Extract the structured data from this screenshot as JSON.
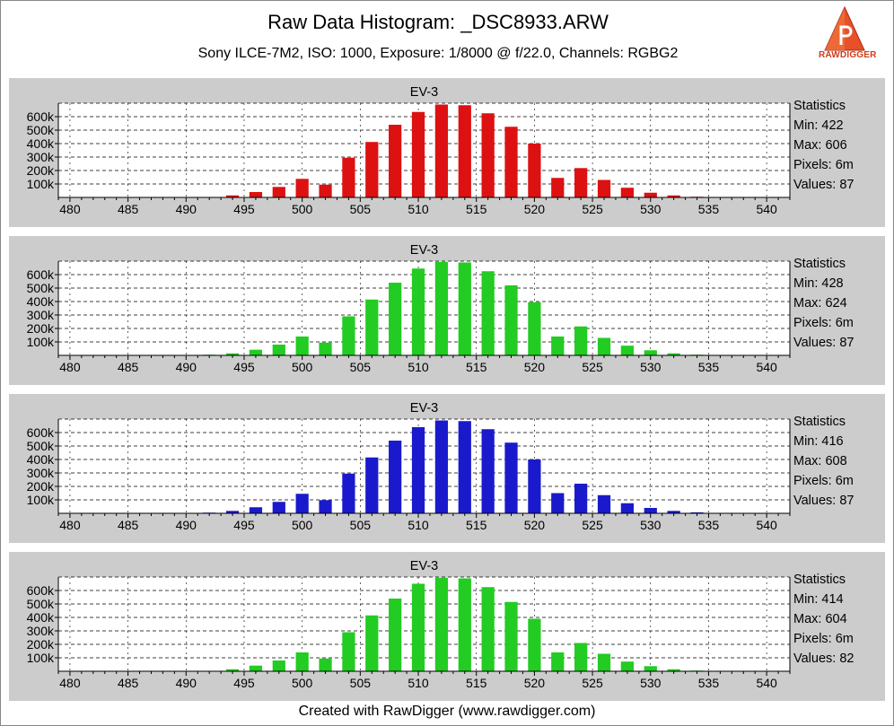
{
  "header": {
    "title": "Raw Data Histogram: _DSC8933.ARW",
    "subtitle": "Sony ILCE-7M2, ISO: 1000, Exposure: 1/8000 @ f/22.0, Channels: RGBG2"
  },
  "logo": {
    "text": "RAWDIGGER"
  },
  "footer": {
    "text": "Created with RawDigger (www.rawdigger.com)"
  },
  "colors": {
    "red": "#dd1111",
    "green": "#22cc22",
    "blue": "#1a1acc",
    "panel": "#cccccc"
  },
  "chart_data": [
    {
      "type": "bar",
      "title": "EV-3",
      "channel": "R",
      "xlim": [
        479,
        542
      ],
      "ylim": [
        0,
        700000
      ],
      "xticks": [
        480,
        485,
        490,
        495,
        500,
        505,
        510,
        515,
        520,
        525,
        530,
        535,
        540
      ],
      "xtick_labels": [
        "480",
        "485",
        "490",
        "495",
        "500",
        "505",
        "510",
        "515",
        "520",
        "525",
        "530",
        "535",
        "540"
      ],
      "yticks": [
        100000,
        200000,
        300000,
        400000,
        500000,
        600000
      ],
      "ytick_labels": [
        "100k",
        "200k",
        "300k",
        "400k",
        "500k",
        "600k"
      ],
      "grid": true,
      "x": [
        492,
        494,
        496,
        498,
        500,
        502,
        504,
        506,
        508,
        510,
        512,
        514,
        516,
        518,
        520,
        522,
        524,
        526,
        528,
        530,
        532,
        534,
        536
      ],
      "values": [
        2000,
        15000,
        40000,
        78000,
        138000,
        95000,
        295000,
        412000,
        540000,
        635000,
        690000,
        685000,
        625000,
        525000,
        400000,
        145000,
        218000,
        130000,
        72000,
        35000,
        15000,
        5000,
        3000
      ],
      "statistics": {
        "heading": "Statistics",
        "min": "Min: 422",
        "max": "Max: 606",
        "pixels": "Pixels: 6m",
        "values": "Values: 87"
      }
    },
    {
      "type": "bar",
      "title": "EV-3",
      "channel": "G",
      "xlim": [
        479,
        542
      ],
      "ylim": [
        0,
        700000
      ],
      "xticks": [
        480,
        485,
        490,
        495,
        500,
        505,
        510,
        515,
        520,
        525,
        530,
        535,
        540
      ],
      "xtick_labels": [
        "480",
        "485",
        "490",
        "495",
        "500",
        "505",
        "510",
        "515",
        "520",
        "525",
        "530",
        "535",
        "540"
      ],
      "yticks": [
        100000,
        200000,
        300000,
        400000,
        500000,
        600000
      ],
      "ytick_labels": [
        "100k",
        "200k",
        "300k",
        "400k",
        "500k",
        "600k"
      ],
      "grid": true,
      "x": [
        492,
        494,
        496,
        498,
        500,
        502,
        504,
        506,
        508,
        510,
        512,
        514,
        516,
        518,
        520,
        522,
        524,
        526,
        528,
        530,
        532,
        534,
        536
      ],
      "values": [
        5000,
        15000,
        42000,
        80000,
        140000,
        95000,
        290000,
        415000,
        540000,
        645000,
        695000,
        690000,
        625000,
        520000,
        395000,
        140000,
        215000,
        130000,
        72000,
        38000,
        15000,
        5000,
        2000
      ],
      "statistics": {
        "heading": "Statistics",
        "min": "Min: 428",
        "max": "Max: 624",
        "pixels": "Pixels: 6m",
        "values": "Values: 87"
      }
    },
    {
      "type": "bar",
      "title": "EV-3",
      "channel": "B",
      "xlim": [
        479,
        542
      ],
      "ylim": [
        0,
        700000
      ],
      "xticks": [
        480,
        485,
        490,
        495,
        500,
        505,
        510,
        515,
        520,
        525,
        530,
        535,
        540
      ],
      "xtick_labels": [
        "480",
        "485",
        "490",
        "495",
        "500",
        "505",
        "510",
        "515",
        "520",
        "525",
        "530",
        "535",
        "540"
      ],
      "yticks": [
        100000,
        200000,
        300000,
        400000,
        500000,
        600000
      ],
      "ytick_labels": [
        "100k",
        "200k",
        "300k",
        "400k",
        "500k",
        "600k"
      ],
      "grid": true,
      "x": [
        492,
        494,
        496,
        498,
        500,
        502,
        504,
        506,
        508,
        510,
        512,
        514,
        516,
        518,
        520,
        522,
        524,
        526,
        528,
        530,
        532,
        534,
        536
      ],
      "values": [
        5000,
        18000,
        45000,
        85000,
        145000,
        98000,
        295000,
        415000,
        540000,
        640000,
        690000,
        685000,
        625000,
        525000,
        400000,
        150000,
        220000,
        135000,
        75000,
        40000,
        18000,
        7000,
        3000
      ],
      "statistics": {
        "heading": "Statistics",
        "min": "Min: 416",
        "max": "Max: 608",
        "pixels": "Pixels: 6m",
        "values": "Values: 87"
      }
    },
    {
      "type": "bar",
      "title": "EV-3",
      "channel": "G2",
      "xlim": [
        479,
        542
      ],
      "ylim": [
        0,
        700000
      ],
      "xticks": [
        480,
        485,
        490,
        495,
        500,
        505,
        510,
        515,
        520,
        525,
        530,
        535,
        540
      ],
      "xtick_labels": [
        "480",
        "485",
        "490",
        "495",
        "500",
        "505",
        "510",
        "515",
        "520",
        "525",
        "530",
        "535",
        "540"
      ],
      "yticks": [
        100000,
        200000,
        300000,
        400000,
        500000,
        600000
      ],
      "ytick_labels": [
        "100k",
        "200k",
        "300k",
        "400k",
        "500k",
        "600k"
      ],
      "grid": true,
      "x": [
        492,
        494,
        496,
        498,
        500,
        502,
        504,
        506,
        508,
        510,
        512,
        514,
        516,
        518,
        520,
        522,
        524,
        526,
        528,
        530,
        532,
        534,
        536
      ],
      "values": [
        3000,
        15000,
        42000,
        80000,
        140000,
        95000,
        290000,
        415000,
        540000,
        650000,
        695000,
        690000,
        625000,
        515000,
        390000,
        140000,
        210000,
        130000,
        72000,
        38000,
        15000,
        5000,
        2000
      ],
      "statistics": {
        "heading": "Statistics",
        "min": "Min: 414",
        "max": "Max: 604",
        "pixels": "Pixels: 6m",
        "values": "Values: 82"
      }
    }
  ]
}
